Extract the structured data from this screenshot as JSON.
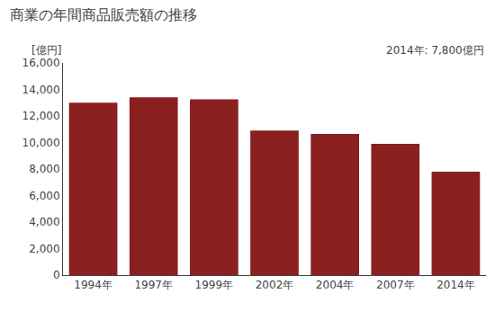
{
  "chart_data": {
    "type": "bar",
    "title": "商業の年間商品販売額の推移",
    "ylabel": "[億円]",
    "annotation": "2014年: 7,800億円",
    "categories": [
      "1994年",
      "1997年",
      "1999年",
      "2002年",
      "2004年",
      "2007年",
      "2014年"
    ],
    "values": [
      13000,
      13400,
      13250,
      10900,
      10650,
      9900,
      7800
    ],
    "color": "#8B2020",
    "ylim": [
      0,
      16000
    ],
    "yticks": [
      0,
      {
        "value": 2000,
        "label": "2,000"
      },
      {
        "value": 4000,
        "label": "4,000"
      },
      {
        "value": 6000,
        "label": "6,000"
      },
      {
        "value": 8000,
        "label": "8,000"
      },
      {
        "value": 10000,
        "label": "10,000"
      },
      {
        "value": 12000,
        "label": "12,000"
      },
      {
        "value": 14000,
        "label": "14,000"
      },
      {
        "value": 16000,
        "label": "16,000"
      }
    ],
    "grid": false
  }
}
